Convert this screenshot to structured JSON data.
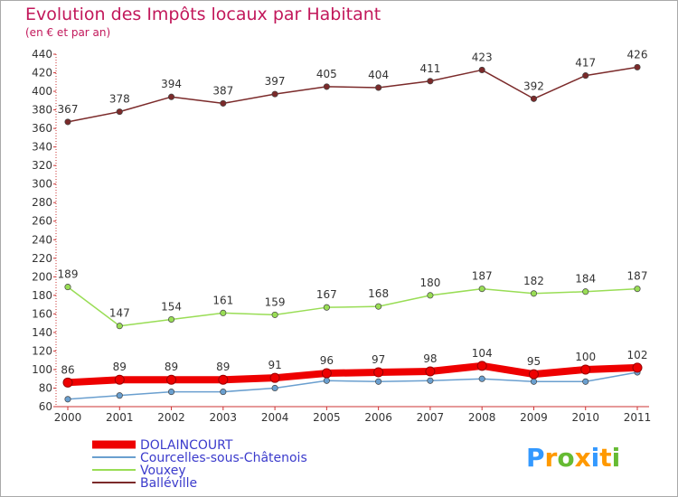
{
  "chart_data": {
    "type": "line",
    "title": "Evolution des Impôts locaux par Habitant",
    "subtitle": "(en € et par an)",
    "xlabel": "",
    "ylabel": "",
    "categories": [
      "2000",
      "2001",
      "2002",
      "2003",
      "2004",
      "2005",
      "2006",
      "2007",
      "2008",
      "2009",
      "2010",
      "2011"
    ],
    "ylim": [
      60,
      440
    ],
    "yticks": [
      60,
      80,
      100,
      120,
      140,
      160,
      180,
      200,
      220,
      240,
      260,
      280,
      300,
      320,
      340,
      360,
      380,
      400,
      420,
      440
    ],
    "grid": false,
    "legend_position": "bottom-left",
    "series": [
      {
        "name": "DOLAINCOURT",
        "color": "#ee0000",
        "values": [
          86,
          89,
          89,
          89,
          91,
          96,
          97,
          98,
          104,
          95,
          100,
          102
        ],
        "labels_shown": true
      },
      {
        "name": "Courcelles-sous-Châtenois",
        "color": "#6a9fcf",
        "values": [
          68,
          72,
          76,
          76,
          80,
          88,
          87,
          88,
          90,
          87,
          87,
          97
        ],
        "labels_shown": false
      },
      {
        "name": "Vouxey",
        "color": "#99dd55",
        "values": [
          189,
          147,
          154,
          161,
          159,
          167,
          168,
          180,
          187,
          182,
          184,
          187
        ],
        "labels_shown": true
      },
      {
        "name": "Balléville",
        "color": "#7b2a2a",
        "values": [
          367,
          378,
          394,
          387,
          397,
          405,
          404,
          411,
          423,
          392,
          417,
          426
        ],
        "labels_shown": true
      }
    ]
  },
  "logo": {
    "text": "Proxiti",
    "letters": [
      "P",
      "r",
      "o",
      "x",
      "i",
      "t",
      "i"
    ],
    "colors": [
      "#3399ff",
      "#ff9900",
      "#66bb33",
      "#ff9900",
      "#3399ff",
      "#ff9900",
      "#66bb33"
    ]
  }
}
